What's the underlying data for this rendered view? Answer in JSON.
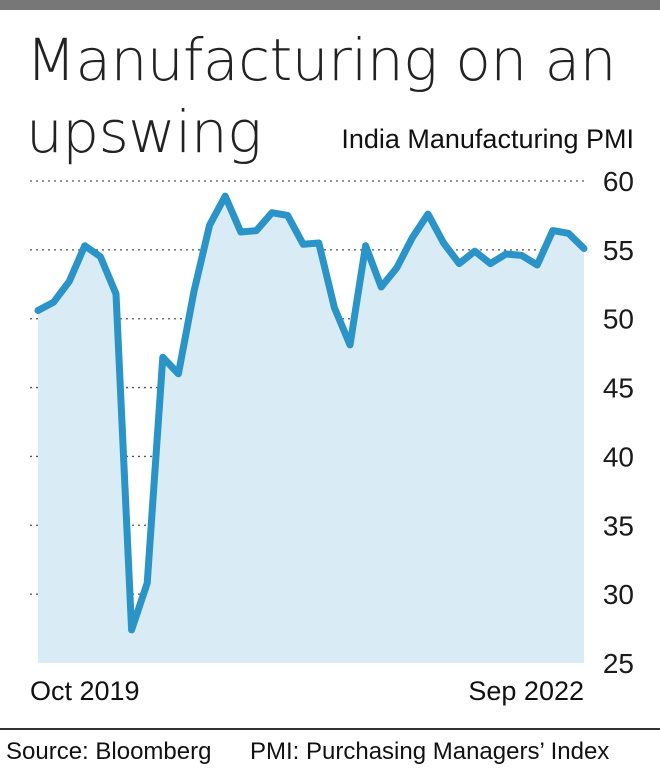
{
  "title": "Manufacturing on an upswing",
  "chart_data": {
    "type": "area",
    "title": "India Manufacturing PMI",
    "x_start_label": "Oct 2019",
    "x_end_label": "Sep 2022",
    "x": [
      "Oct 2019",
      "Nov 2019",
      "Dec 2019",
      "Jan 2020",
      "Feb 2020",
      "Mar 2020",
      "Apr 2020",
      "May 2020",
      "Jun 2020",
      "Jul 2020",
      "Aug 2020",
      "Sep 2020",
      "Oct 2020",
      "Nov 2020",
      "Dec 2020",
      "Jan 2021",
      "Feb 2021",
      "Mar 2021",
      "Apr 2021",
      "May 2021",
      "Jun 2021",
      "Jul 2021",
      "Aug 2021",
      "Sep 2021",
      "Oct 2021",
      "Nov 2021",
      "Dec 2021",
      "Jan 2022",
      "Feb 2022",
      "Mar 2022",
      "Apr 2022",
      "May 2022",
      "Jun 2022",
      "Jul 2022",
      "Aug 2022",
      "Sep 2022"
    ],
    "series": [
      {
        "values": [
          50.6,
          51.2,
          52.7,
          55.3,
          54.5,
          51.8,
          27.4,
          30.8,
          47.2,
          46.0,
          52.0,
          56.8,
          58.9,
          56.3,
          56.4,
          57.7,
          57.5,
          55.4,
          55.5,
          50.8,
          48.1,
          55.3,
          52.3,
          53.7,
          55.9,
          57.6,
          55.5,
          54.0,
          54.9,
          54.0,
          54.7,
          54.6,
          53.9,
          56.4,
          56.2,
          55.1
        ]
      }
    ],
    "yticks": [
      25,
      30,
      35,
      40,
      45,
      50,
      55,
      60
    ],
    "ylim": [
      25,
      60
    ],
    "grid": true,
    "line_color": "#2a93c8",
    "fill_color": "#d9ebf5"
  },
  "footer": {
    "source": "Source: Bloomberg",
    "definition": "PMI: Purchasing Managers’ Index"
  }
}
